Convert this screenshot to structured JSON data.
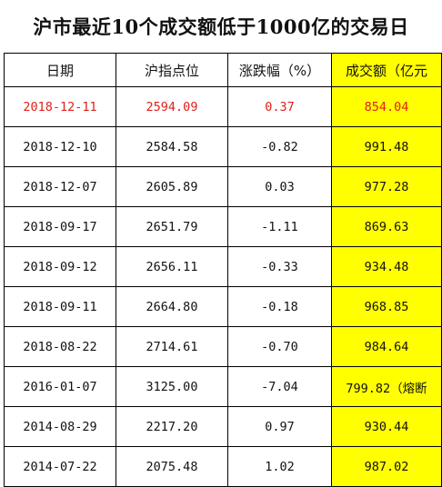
{
  "title": "沪市最近10个成交额低于1000亿的交易日",
  "colors": {
    "turnover_bg": "#ffff00",
    "highlight_text": "#e0201a",
    "grid_line": "#000000"
  },
  "headers": {
    "date": "日期",
    "index": "沪指点位",
    "change": "涨跌幅（%）",
    "turnover": "成交额（亿元"
  },
  "rows": [
    {
      "date": "2018-12-11",
      "index": "2594.09",
      "change": "0.37",
      "turnover": "854.04",
      "note": "",
      "highlight": true
    },
    {
      "date": "2018-12-10",
      "index": "2584.58",
      "change": "-0.82",
      "turnover": "991.48",
      "note": "",
      "highlight": false
    },
    {
      "date": "2018-12-07",
      "index": "2605.89",
      "change": "0.03",
      "turnover": "977.28",
      "note": "",
      "highlight": false
    },
    {
      "date": "2018-09-17",
      "index": "2651.79",
      "change": "-1.11",
      "turnover": "869.63",
      "note": "",
      "highlight": false
    },
    {
      "date": "2018-09-12",
      "index": "2656.11",
      "change": "-0.33",
      "turnover": "934.48",
      "note": "",
      "highlight": false
    },
    {
      "date": "2018-09-11",
      "index": "2664.80",
      "change": "-0.18",
      "turnover": "968.85",
      "note": "",
      "highlight": false
    },
    {
      "date": "2018-08-22",
      "index": "2714.61",
      "change": "-0.70",
      "turnover": "984.64",
      "note": "",
      "highlight": false
    },
    {
      "date": "2016-01-07",
      "index": "3125.00",
      "change": "-7.04",
      "turnover": "799.82",
      "note": "（熔断",
      "highlight": false
    },
    {
      "date": "2014-08-29",
      "index": "2217.20",
      "change": "0.97",
      "turnover": "930.44",
      "note": "",
      "highlight": false
    },
    {
      "date": "2014-07-22",
      "index": "2075.48",
      "change": "1.02",
      "turnover": "987.02",
      "note": "",
      "highlight": false
    }
  ]
}
